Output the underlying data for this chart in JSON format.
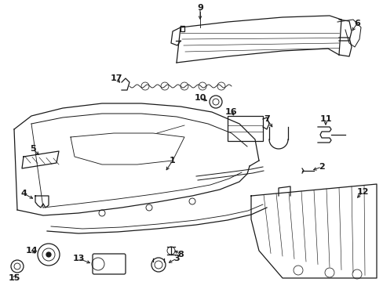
{
  "bg_color": "#ffffff",
  "line_color": "#1a1a1a",
  "lw": 0.9,
  "fig_w": 4.89,
  "fig_h": 3.6,
  "dpi": 100
}
